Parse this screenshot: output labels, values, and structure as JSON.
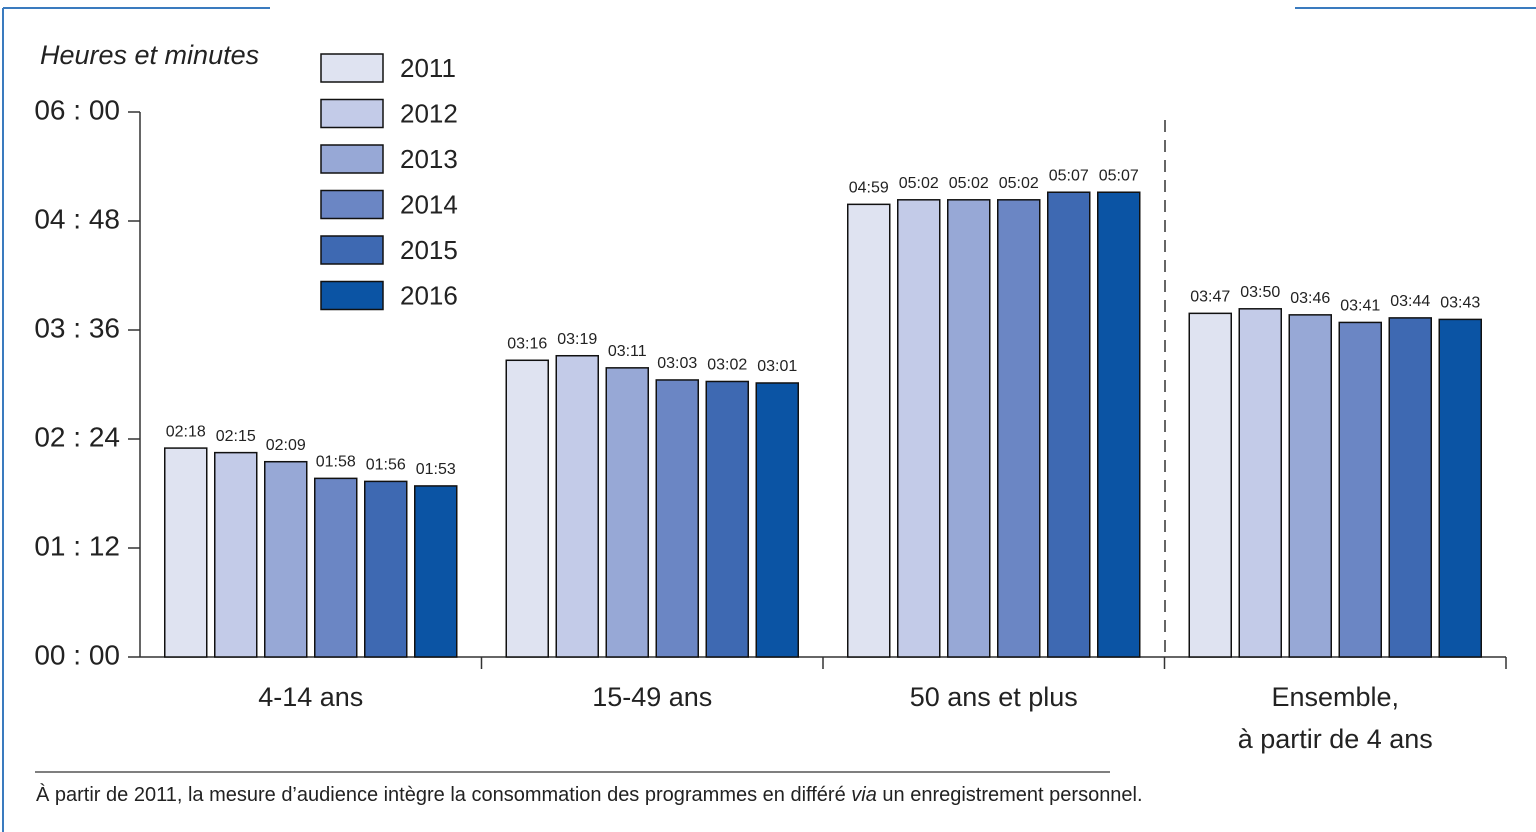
{
  "chart_data": {
    "type": "bar",
    "y_label": "Heures et minutes",
    "categories": [
      "4-14 ans",
      "15-49 ans",
      "50 ans et plus",
      "Ensemble,\nà partir de 4 ans"
    ],
    "series": [
      {
        "name": "2011",
        "color": "#dfe3f1",
        "values": [
          138,
          196,
          299,
          227
        ],
        "value_labels": [
          "02:18",
          "03:16",
          "04:59",
          "03:47"
        ]
      },
      {
        "name": "2012",
        "color": "#c3cbe8",
        "values": [
          135,
          199,
          302,
          230
        ],
        "value_labels": [
          "02:15",
          "03:19",
          "05:02",
          "03:50"
        ]
      },
      {
        "name": "2013",
        "color": "#97a8d6",
        "values": [
          129,
          191,
          302,
          226
        ],
        "value_labels": [
          "02:09",
          "03:11",
          "05:02",
          "03:46"
        ]
      },
      {
        "name": "2014",
        "color": "#6b86c4",
        "values": [
          118,
          183,
          302,
          221
        ],
        "value_labels": [
          "01:58",
          "03:03",
          "05:02",
          "03:41"
        ]
      },
      {
        "name": "2015",
        "color": "#3e69b2",
        "values": [
          116,
          182,
          307,
          224
        ],
        "value_labels": [
          "01:56",
          "03:02",
          "05:07",
          "03:44"
        ]
      },
      {
        "name": "2016",
        "color": "#0b54a4",
        "values": [
          113,
          181,
          307,
          223
        ],
        "value_labels": [
          "01:53",
          "03:01",
          "05:07",
          "03:43"
        ]
      }
    ],
    "ylim": [
      0,
      360
    ],
    "yticks": [
      {
        "value": 0,
        "label": "00 : 00"
      },
      {
        "value": 72,
        "label": "01 : 12"
      },
      {
        "value": 144,
        "label": "02 : 24"
      },
      {
        "value": 216,
        "label": "03 : 36"
      },
      {
        "value": 288,
        "label": "04 : 48"
      },
      {
        "value": 360,
        "label": "06 : 00"
      }
    ],
    "grid": false,
    "legend": "top-left",
    "note": [
      "À partir de 2011, la mesure d’audience intègre la consommation des programmes en différé ",
      "via",
      " un enregistrement personnel."
    ]
  }
}
